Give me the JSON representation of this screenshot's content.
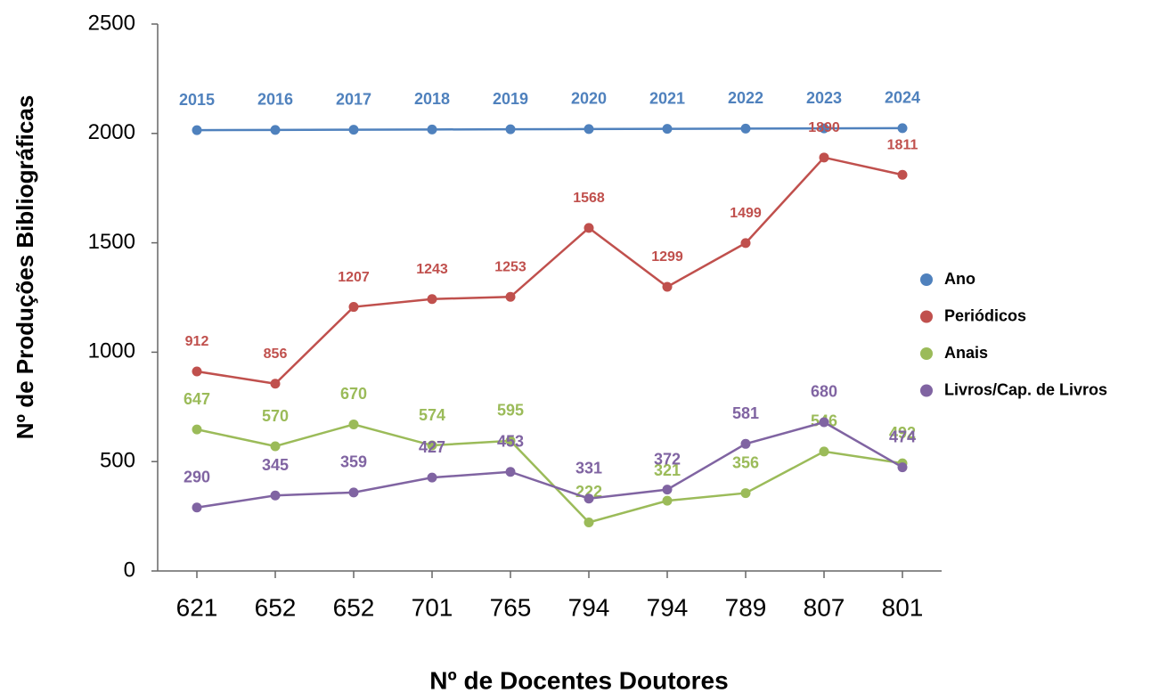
{
  "chart_data": {
    "type": "line",
    "xlabel": "Nº de Docentes Doutores",
    "ylabel": "Nº de Produções Bibliográficas",
    "categories": [
      "621",
      "652",
      "652",
      "701",
      "765",
      "794",
      "794",
      "789",
      "807",
      "801"
    ],
    "series": [
      {
        "name": "Ano",
        "color": "#4f81bd",
        "values": [
          2015,
          2016,
          2017,
          2018,
          2019,
          2020,
          2021,
          2022,
          2023,
          2024
        ]
      },
      {
        "name": "Periódicos",
        "color": "#c0504d",
        "values": [
          912,
          856,
          1207,
          1243,
          1253,
          1568,
          1299,
          1499,
          1890,
          1811
        ]
      },
      {
        "name": "Anais",
        "color": "#9bbb59",
        "values": [
          647,
          570,
          670,
          574,
          595,
          222,
          321,
          356,
          546,
          492
        ]
      },
      {
        "name": "Livros/Cap. de Livros",
        "color": "#8064a2",
        "values": [
          290,
          345,
          359,
          427,
          453,
          331,
          372,
          581,
          680,
          474
        ]
      }
    ],
    "ylim": [
      0,
      2500
    ],
    "yticks": [
      0,
      500,
      1000,
      1500,
      2000,
      2500
    ],
    "legend": "right"
  }
}
